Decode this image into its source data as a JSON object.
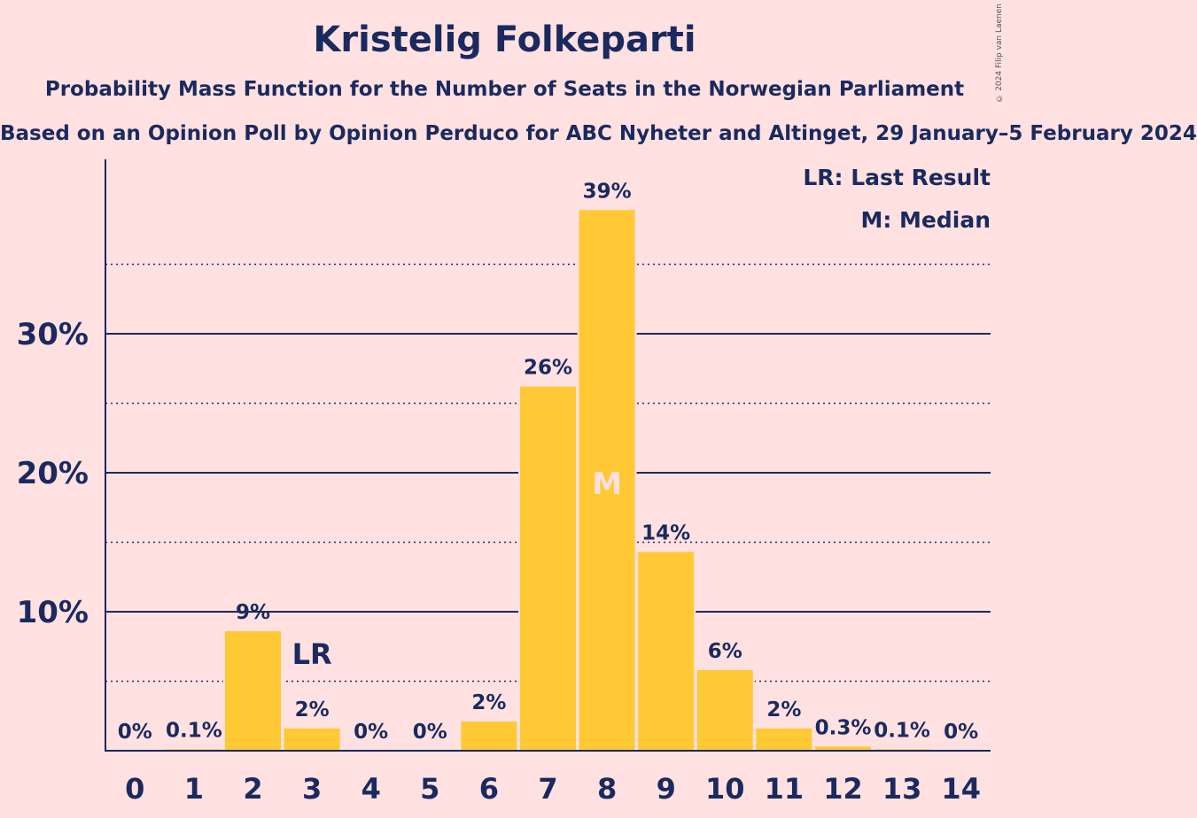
{
  "header": {
    "title": "Kristelig Folkeparti",
    "subtitle": "Probability Mass Function for the Number of Seats in the Norwegian Parliament",
    "subtitle2": "Based on an Opinion Poll by Opinion Perduco for ABC Nyheter and Altinget, 29 January–5 February 2024",
    "copyright": "© 2024 Filip van Laenen"
  },
  "colors": {
    "background": "#FFE1E1",
    "bar": "#FFC835",
    "text": "#1A2A5E",
    "median_label": "#FFE1E1"
  },
  "chart_data": {
    "type": "bar",
    "categories": [
      "0",
      "1",
      "2",
      "3",
      "4",
      "5",
      "6",
      "7",
      "8",
      "9",
      "10",
      "11",
      "12",
      "13",
      "14"
    ],
    "values": [
      0,
      0.1,
      8.6,
      1.6,
      0,
      0,
      2.1,
      26.2,
      38.9,
      14.3,
      5.8,
      1.6,
      0.3,
      0.1,
      0
    ],
    "data_labels": [
      "0%",
      "0.1%",
      "9%",
      "2%",
      "0%",
      "0%",
      "2%",
      "26%",
      "39%",
      "14%",
      "6%",
      "2%",
      "0.3%",
      "0.1%",
      "0%"
    ],
    "ylim": [
      0,
      42
    ],
    "yticks": [
      10,
      20,
      30
    ],
    "ytick_labels": [
      "10%",
      "20%",
      "30%"
    ],
    "minor_gridlines": [
      5,
      15,
      25,
      35
    ],
    "last_result": {
      "category": "3",
      "label": "LR"
    },
    "median": {
      "category": "8",
      "label": "M"
    },
    "legend": [
      "LR: Last Result",
      "M: Median"
    ],
    "legend_position": "top-right"
  }
}
